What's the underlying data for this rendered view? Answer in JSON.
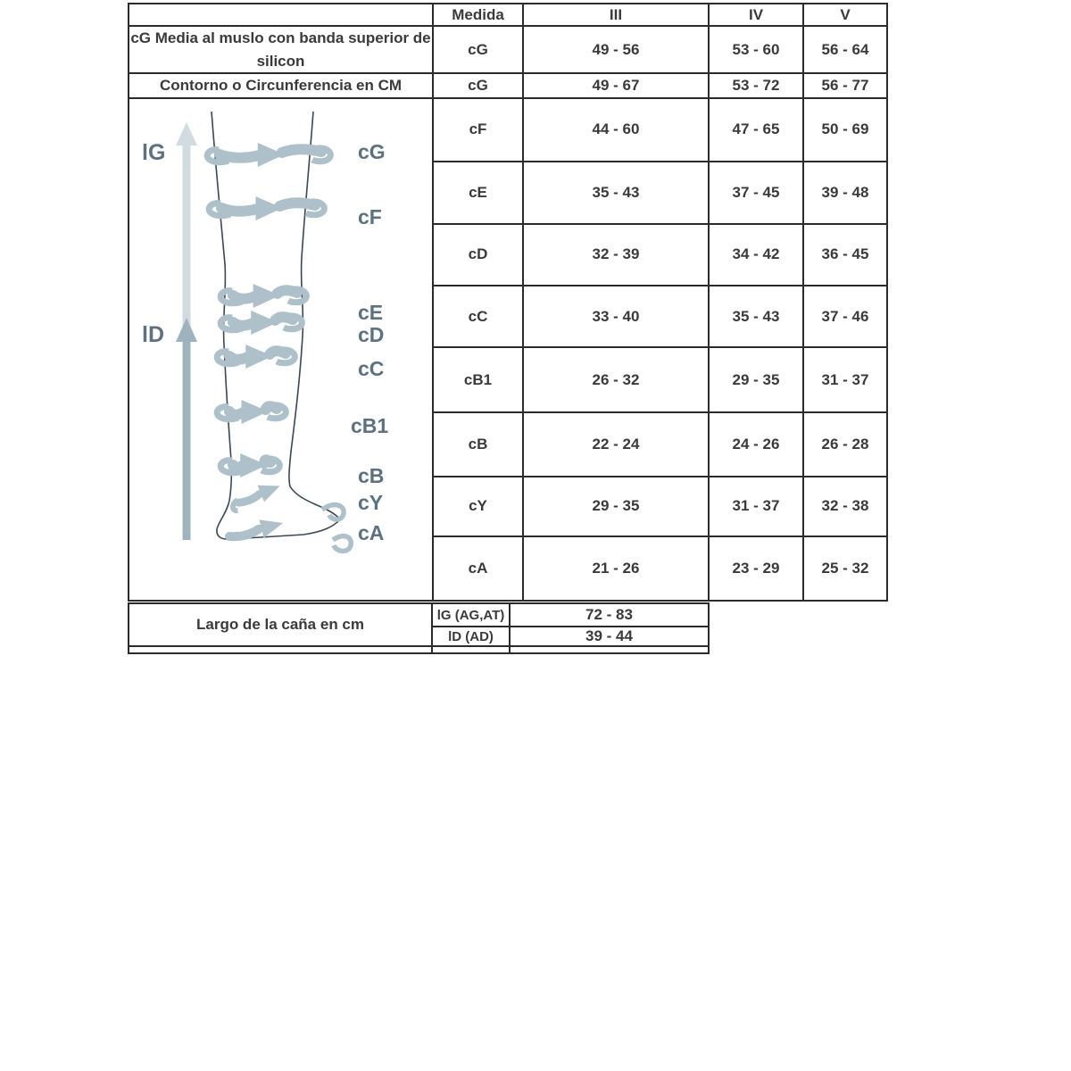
{
  "table": {
    "header": {
      "col0": "",
      "medida": "Medida",
      "iii": "III",
      "iv": "IV",
      "v": "V"
    },
    "upper_rows": [
      {
        "label": "cG Media al muslo con banda superior de silicon",
        "medida": "cG",
        "iii": "49 - 56",
        "iv": "53 - 60",
        "v": "56 - 64"
      },
      {
        "label": "Contorno o Circunferencia en CM",
        "medida": "cG",
        "iii": "49 - 67",
        "iv": "53 - 72",
        "v": "56 - 77"
      }
    ],
    "measure_rows": [
      {
        "medida": "cF",
        "iii": "44 - 60",
        "iv": "47 - 65",
        "v": "50 - 69"
      },
      {
        "medida": "cE",
        "iii": "35 - 43",
        "iv": "37 - 45",
        "v": "39 - 48"
      },
      {
        "medida": "cD",
        "iii": "32 - 39",
        "iv": "34 - 42",
        "v": "36 - 45"
      },
      {
        "medida": "cC",
        "iii": "33 - 40",
        "iv": "35 - 43",
        "v": "37 - 46"
      },
      {
        "medida": "cB1",
        "iii": "26 - 32",
        "iv": "29 - 35",
        "v": "31 - 37"
      },
      {
        "medida": "cB",
        "iii": "22 - 24",
        "iv": "24 - 26",
        "v": "26 - 28"
      },
      {
        "medida": "cY",
        "iii": "29 - 35",
        "iv": "31 - 37",
        "v": "32 - 38"
      },
      {
        "medida": "cA",
        "iii": "21 - 26",
        "iv": "23 - 29",
        "v": "25 - 32"
      }
    ],
    "bottom": {
      "label": "Largo de la caña en cm",
      "rows": [
        {
          "medida": "lG (AG,AT)",
          "iii": "72 - 83"
        },
        {
          "medida": "lD (AD)",
          "iii": "39 - 44"
        }
      ]
    }
  },
  "diagram": {
    "length_labels": {
      "lG": "lG",
      "lD": "lD"
    },
    "girth_labels": {
      "cG": "cG",
      "cF": "cF",
      "cE": "cE",
      "cD": "cD",
      "cC": "cC",
      "cB1": "cB1",
      "cB": "cB",
      "cY": "cY",
      "cA": "cA"
    }
  },
  "colors": {
    "shaded_cell": "#e7eaec",
    "border": "#2b2b2b",
    "band": "#aec0ca",
    "length_arrow_light": "#d2dbe0",
    "length_arrow_dark": "#9fb3be",
    "leg_outline": "#3b4754",
    "diagram_label": "#5d7181",
    "table_text": "#3a3a3a"
  }
}
